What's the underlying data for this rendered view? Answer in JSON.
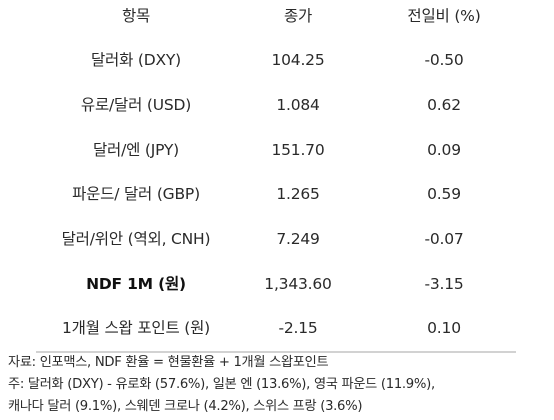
{
  "table": {
    "headers": {
      "item": "항목",
      "price": "종가",
      "change": "전일비 (%)"
    },
    "rows": [
      {
        "item": "달러화 (DXY)",
        "price": "104.25",
        "change": "-0.50"
      },
      {
        "item": "유로/달러 (USD)",
        "price": "1.084",
        "change": "0.62"
      },
      {
        "item": "달러/엔 (JPY)",
        "price": "151.70",
        "change": "0.09"
      },
      {
        "item": "파운드/ 달러 (GBP)",
        "price": "1.265",
        "change": "0.59"
      },
      {
        "item": "달러/위안 (역외, CNH)",
        "price": "7.249",
        "change": "-0.07"
      },
      {
        "item": "NDF 1M (원)",
        "price": "1,343.60",
        "change": "-3.15"
      },
      {
        "item": "1개월 스왑 포인트 (원)",
        "price": "-2.15",
        "change": "0.10"
      }
    ]
  },
  "notes": {
    "source": "자료: 인포맥스, NDF 환율 = 현물환율 + 1개월 스왑포인트",
    "note_line1": "주: 달러화 (DXY) - 유로화 (57.6%), 일본 엔 (13.6%), 영국 파운드 (11.9%),",
    "note_line2": "캐나다 달러 (9.1%), 스웨덴 크로나 (4.2%), 스위스 프랑 (3.6%)"
  }
}
